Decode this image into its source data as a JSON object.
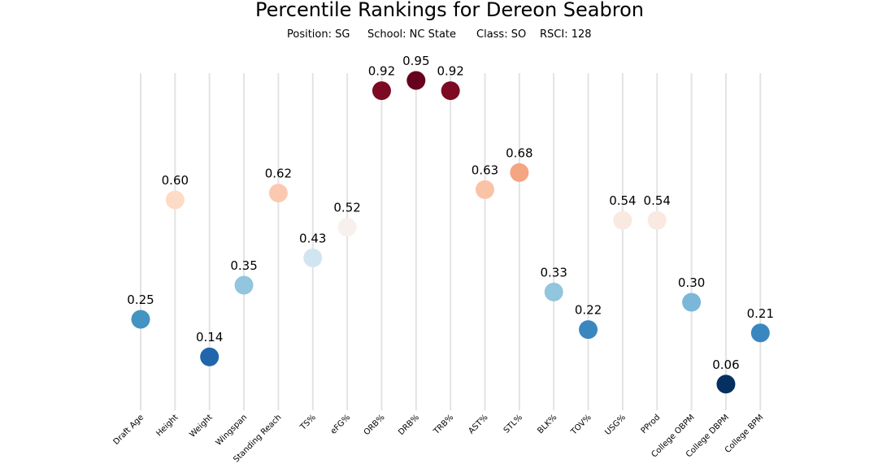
{
  "chart_data": {
    "type": "scatter",
    "title": "Percentile Rankings for Dereon Seabron",
    "subtitle": {
      "position": "Position: SG",
      "school": "School: NC State",
      "class": "Class: SO",
      "rsci": "RSCI: 128"
    },
    "categories": [
      "Draft Age",
      "Height",
      "Weight",
      "Wingspan",
      "Standing Reach",
      "TS%",
      "eFG%",
      "ORB%",
      "DRB%",
      "TRB%",
      "AST%",
      "STL%",
      "BLK%",
      "TOV%",
      "USG%",
      "PProd",
      "College OBPM",
      "College DBPM",
      "College BPM"
    ],
    "values": [
      0.25,
      0.6,
      0.14,
      0.35,
      0.62,
      0.43,
      0.52,
      0.92,
      0.95,
      0.92,
      0.63,
      0.68,
      0.33,
      0.22,
      0.54,
      0.54,
      0.3,
      0.06,
      0.21
    ],
    "value_labels": [
      "0.25",
      "0.60",
      "0.14",
      "0.35",
      "0.62",
      "0.43",
      "0.52",
      "0.92",
      "0.95",
      "0.92",
      "0.63",
      "0.68",
      "0.33",
      "0.22",
      "0.54",
      "0.54",
      "0.30",
      "0.06",
      "0.21"
    ],
    "colors": [
      "#4393c3",
      "#fddbc7",
      "#2166ac",
      "#92c5de",
      "#fbc9b1",
      "#d1e5f0",
      "#f7f0ec",
      "#7c0a22",
      "#67001f",
      "#7c0a22",
      "#f9c3a6",
      "#f4a582",
      "#92c5de",
      "#3a87c0",
      "#f9e9e1",
      "#f9e9e1",
      "#7ab7d8",
      "#053061",
      "#3a87c0"
    ],
    "colormap": "RdBu_r",
    "ylim": [
      0,
      1
    ],
    "grid": false,
    "xlabel": "",
    "ylabel": ""
  }
}
